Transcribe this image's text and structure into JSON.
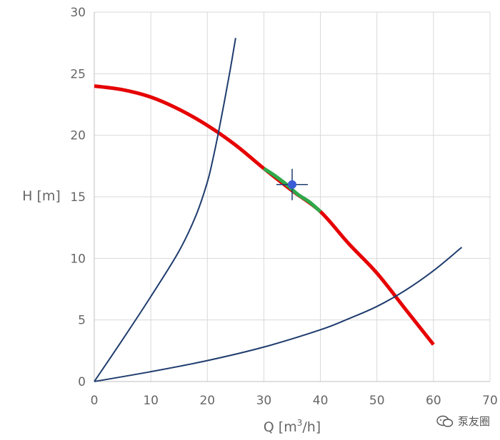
{
  "chart_data": {
    "type": "line",
    "xlabel_text": "Q [m",
    "xlabel_sup": "3",
    "xlabel_tail": "/h]",
    "ylabel": "H [m]",
    "xlim": [
      0,
      70
    ],
    "ylim": [
      0,
      30
    ],
    "xticks": [
      0,
      10,
      20,
      30,
      40,
      50,
      60,
      70
    ],
    "yticks": [
      0,
      5,
      10,
      15,
      20,
      25,
      30
    ],
    "grid": true,
    "series": [
      {
        "color": "#e60000",
        "x": [
          0,
          5,
          10,
          15,
          20,
          25,
          30,
          35,
          40,
          45,
          50,
          55,
          60
        ],
        "y": [
          24,
          23.7,
          23.1,
          22.1,
          20.8,
          19.2,
          17.3,
          15.5,
          13.8,
          11.2,
          8.8,
          5.9,
          3.0
        ]
      },
      {
        "color": "#2ea84a",
        "x": [
          30,
          32,
          34,
          36,
          38,
          40
        ],
        "y": [
          17.3,
          16.7,
          16.0,
          15.2,
          14.6,
          13.8
        ]
      },
      {
        "color": "#1f3c6e",
        "x": [
          0,
          5,
          10,
          15,
          18,
          20,
          21,
          22,
          23,
          24,
          25
        ],
        "y": [
          0,
          3.4,
          6.9,
          10.6,
          13.5,
          16.2,
          18.1,
          20.3,
          22.7,
          25.2,
          27.9
        ]
      },
      {
        "color": "#1f3c6e",
        "x": [
          0,
          10,
          20,
          30,
          40,
          45,
          50,
          55,
          60,
          65
        ],
        "y": [
          0,
          0.8,
          1.7,
          2.8,
          4.2,
          5.1,
          6.1,
          7.4,
          9.0,
          10.9
        ]
      }
    ],
    "operating_point": {
      "x": 35,
      "y": 16,
      "color": "#3b5bd6",
      "crosshair_color": "#1f3c6e"
    }
  },
  "watermark": {
    "text": "泵友圈",
    "icon": "wechat-icon"
  }
}
